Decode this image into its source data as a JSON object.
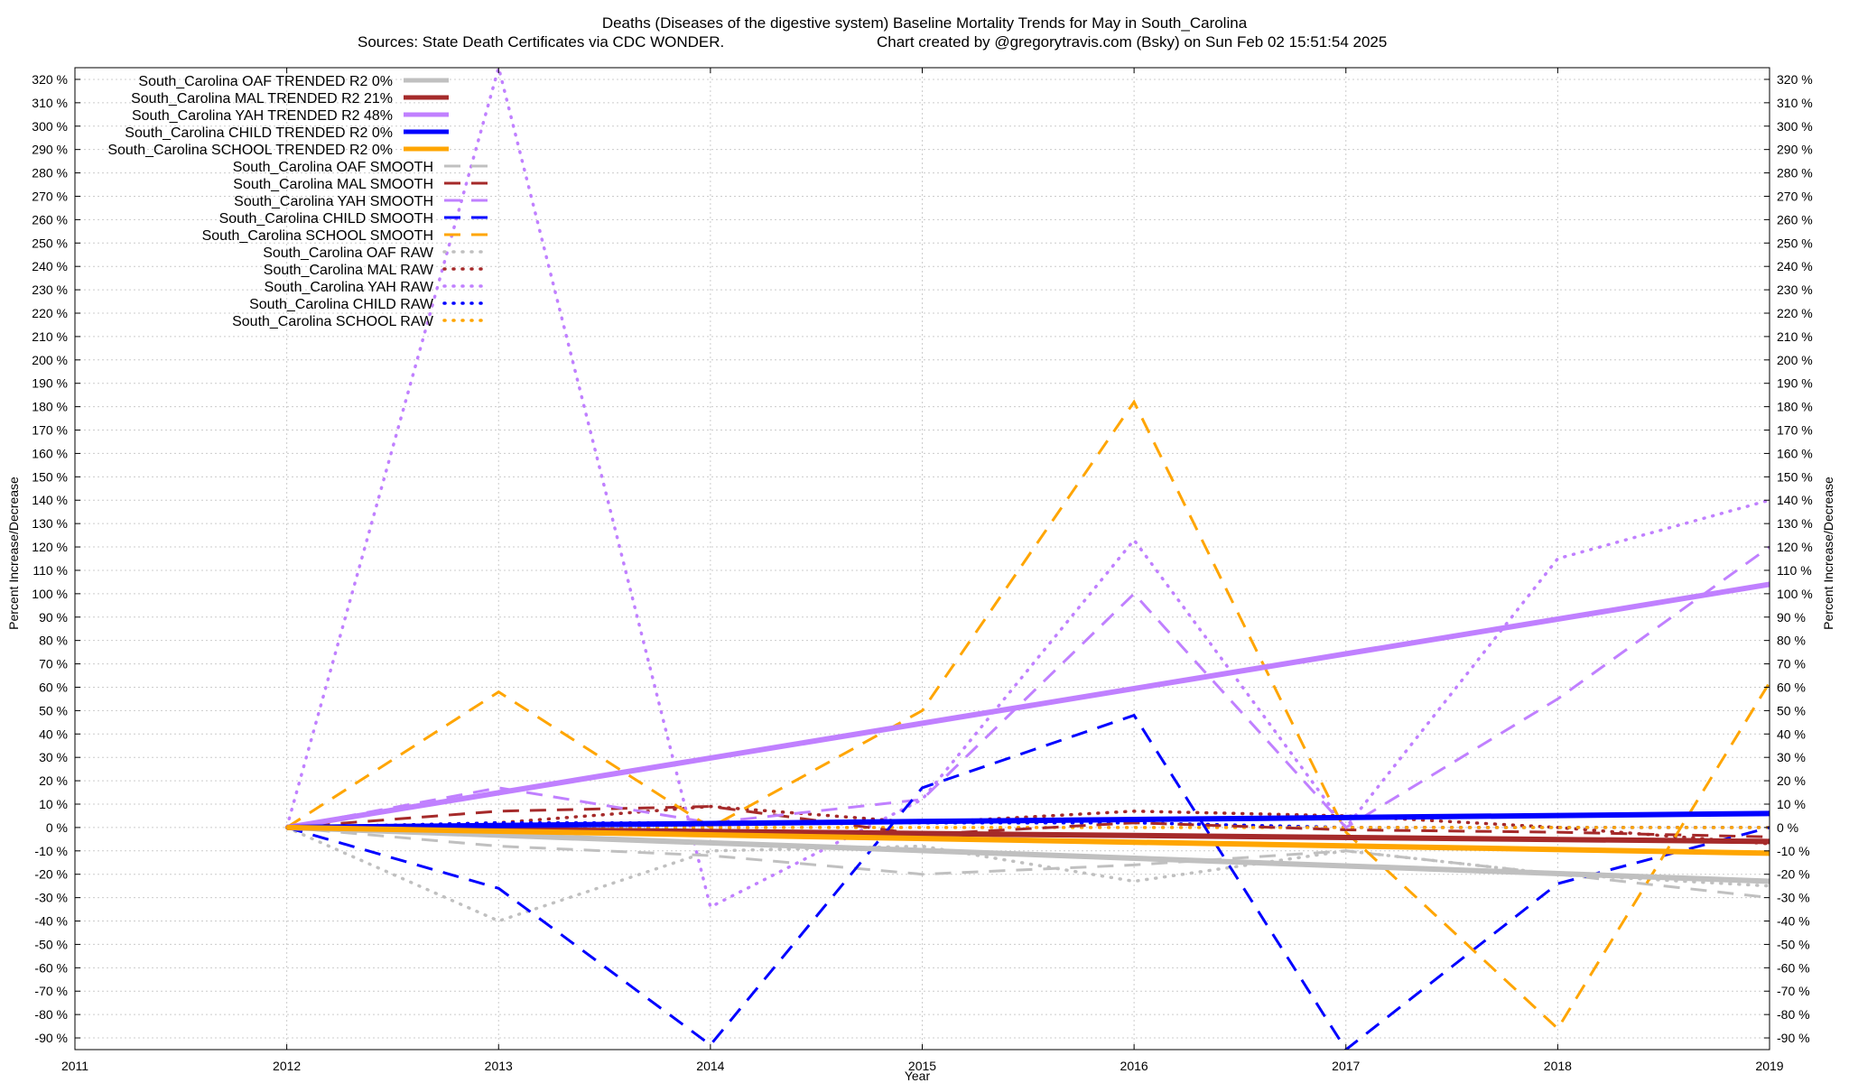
{
  "chart_data": {
    "type": "line",
    "title_line1": "Deaths (Diseases of the digestive system)  Baseline Mortality Trends for May in South_Carolina",
    "title_line2_left": "Sources: State Death Certificates via CDC WONDER.",
    "title_line2_right": "Chart created by @gregorytravis.com (Bsky) on Sun Feb 02 15:51:54 2025",
    "xlabel": "Year",
    "ylabel_left": "Percent Increase/Decrease",
    "ylabel_right": "Percent Increase/Decrease",
    "xlim": [
      2011,
      2019
    ],
    "ylim": [
      -95,
      325
    ],
    "x_ticks": [
      "2011",
      "2012",
      "2013",
      "2014",
      "2015",
      "2016",
      "2017",
      "2018",
      "2019"
    ],
    "y_ticks": [
      "-90 %",
      "-80 %",
      "-70 %",
      "-60 %",
      "-50 %",
      "-40 %",
      "-30 %",
      "-20 %",
      "-10 %",
      "0 %",
      "10 %",
      "20 %",
      "30 %",
      "40 %",
      "50 %",
      "60 %",
      "70 %",
      "80 %",
      "90 %",
      "100 %",
      "110 %",
      "120 %",
      "130 %",
      "140 %",
      "150 %",
      "160 %",
      "170 %",
      "180 %",
      "190 %",
      "200 %",
      "210 %",
      "220 %",
      "230 %",
      "240 %",
      "250 %",
      "260 %",
      "270 %",
      "280 %",
      "290 %",
      "300 %",
      "310 %",
      "320 %"
    ],
    "grid": true,
    "legend_position": "top-left",
    "colors": {
      "OAF": "#c0c0c0",
      "MAL": "#a52a2a",
      "YAH": "#c080ff",
      "CHILD": "#0000ff",
      "SCHOOL": "#ffa500"
    },
    "series": [
      {
        "name": "South_Carolina OAF TRENDED R2  0%",
        "group": "OAF",
        "style": "trend",
        "x": [
          2012,
          2019
        ],
        "y": [
          0,
          -23
        ]
      },
      {
        "name": "South_Carolina MAL TRENDED R2  21%",
        "group": "MAL",
        "style": "trend",
        "x": [
          2012,
          2019
        ],
        "y": [
          0,
          -6
        ]
      },
      {
        "name": "South_Carolina YAH TRENDED R2  48%",
        "group": "YAH",
        "style": "trend",
        "x": [
          2012,
          2019
        ],
        "y": [
          0,
          104
        ]
      },
      {
        "name": "South_Carolina CHILD TRENDED R2  0%",
        "group": "CHILD",
        "style": "trend",
        "x": [
          2012,
          2019
        ],
        "y": [
          0,
          6
        ]
      },
      {
        "name": "South_Carolina SCHOOL TRENDED R2  0%",
        "group": "SCHOOL",
        "style": "trend",
        "x": [
          2012,
          2019
        ],
        "y": [
          0,
          -11
        ]
      },
      {
        "name": "South_Carolina OAF SMOOTH",
        "group": "OAF",
        "style": "smooth",
        "x": [
          2012,
          2013,
          2014,
          2015,
          2016,
          2017,
          2018,
          2019
        ],
        "y": [
          0,
          -8,
          -12,
          -20,
          -16,
          -10,
          -20,
          -30
        ]
      },
      {
        "name": "South_Carolina MAL SMOOTH",
        "group": "MAL",
        "style": "smooth",
        "x": [
          2012,
          2013,
          2014,
          2015,
          2016,
          2017,
          2018,
          2019
        ],
        "y": [
          0,
          7,
          9,
          -3,
          2,
          -1,
          -2,
          -4
        ]
      },
      {
        "name": "South_Carolina YAH SMOOTH",
        "group": "YAH",
        "style": "smooth",
        "x": [
          2012,
          2013,
          2014,
          2015,
          2016,
          2017,
          2018,
          2019
        ],
        "y": [
          0,
          17,
          2,
          12,
          100,
          0,
          55,
          120
        ]
      },
      {
        "name": "South_Carolina CHILD SMOOTH",
        "group": "CHILD",
        "style": "smooth",
        "x": [
          2012,
          2013,
          2014,
          2015,
          2016,
          2017,
          2018,
          2019
        ],
        "y": [
          0,
          -26,
          -93,
          17,
          48,
          -95,
          -24,
          0
        ]
      },
      {
        "name": "South_Carolina SCHOOL SMOOTH",
        "group": "SCHOOL",
        "style": "smooth",
        "x": [
          2012,
          2013,
          2014,
          2015,
          2016,
          2017,
          2018,
          2019
        ],
        "y": [
          0,
          58,
          0,
          50,
          182,
          -2,
          -86,
          62
        ]
      },
      {
        "name": "South_Carolina OAF RAW",
        "group": "OAF",
        "style": "raw",
        "x": [
          2012,
          2013,
          2014,
          2015,
          2016,
          2017,
          2018,
          2019
        ],
        "y": [
          0,
          -40,
          -10,
          -8,
          -23,
          -10,
          -20,
          -25
        ]
      },
      {
        "name": "South_Carolina MAL RAW",
        "group": "MAL",
        "style": "raw",
        "x": [
          2012,
          2013,
          2014,
          2015,
          2016,
          2017,
          2018,
          2019
        ],
        "y": [
          0,
          2,
          9,
          2,
          7,
          5,
          0,
          -7
        ]
      },
      {
        "name": "South_Carolina YAH RAW",
        "group": "YAH",
        "style": "raw",
        "x": [
          2012,
          2013,
          2014,
          2015,
          2016,
          2017,
          2018,
          2019
        ],
        "y": [
          0,
          325,
          -34,
          12,
          123,
          0,
          115,
          140
        ]
      },
      {
        "name": "South_Carolina CHILD RAW",
        "group": "CHILD",
        "style": "raw",
        "x": [
          2012,
          2013,
          2014,
          2015,
          2016,
          2017,
          2018,
          2019
        ],
        "y": [
          0,
          2,
          2,
          2,
          2,
          0,
          0,
          0
        ]
      },
      {
        "name": "South_Carolina SCHOOL RAW",
        "group": "SCHOOL",
        "style": "raw",
        "x": [
          2012,
          2013,
          2014,
          2015,
          2016,
          2017,
          2018,
          2019
        ],
        "y": [
          0,
          0,
          0,
          0,
          0,
          0,
          0,
          0
        ]
      }
    ]
  }
}
